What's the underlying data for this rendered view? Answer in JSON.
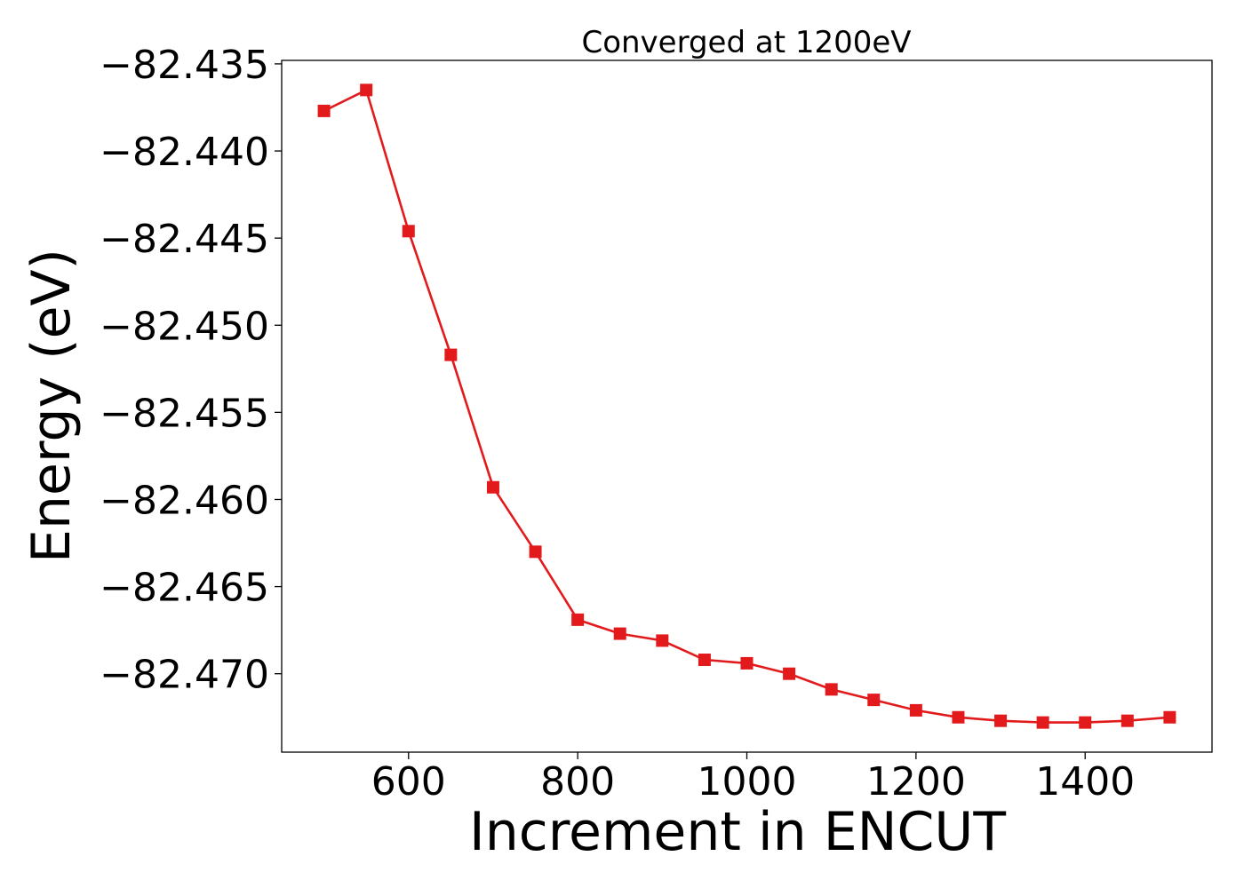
{
  "chart_data": {
    "type": "line",
    "title": "Converged at 1200eV",
    "xlabel": "Increment in ENCUT",
    "ylabel": "Energy (eV)",
    "xlim": [
      450,
      1550
    ],
    "ylim": [
      -82.4745,
      -82.4348
    ],
    "xticks": [
      600,
      800,
      1000,
      1200,
      1400
    ],
    "yticks": [
      -82.435,
      -82.44,
      -82.445,
      -82.45,
      -82.455,
      -82.46,
      -82.465,
      -82.47
    ],
    "ytick_labels": [
      "−82.435",
      "−82.440",
      "−82.445",
      "−82.450",
      "−82.455",
      "−82.460",
      "−82.465",
      "−82.470"
    ],
    "grid": false,
    "marker": "square",
    "series": [
      {
        "color": "#e31a1c",
        "x": [
          500,
          550,
          600,
          650,
          700,
          750,
          800,
          850,
          900,
          950,
          1000,
          1050,
          1100,
          1150,
          1200,
          1250,
          1300,
          1350,
          1400,
          1450,
          1500
        ],
        "y": [
          -82.4377,
          -82.4365,
          -82.4446,
          -82.4517,
          -82.4593,
          -82.463,
          -82.4669,
          -82.4677,
          -82.4681,
          -82.4692,
          -82.4694,
          -82.47,
          -82.4709,
          -82.4715,
          -82.4721,
          -82.4725,
          -82.4727,
          -82.4728,
          -82.4728,
          -82.4727,
          -82.4725
        ]
      }
    ]
  }
}
